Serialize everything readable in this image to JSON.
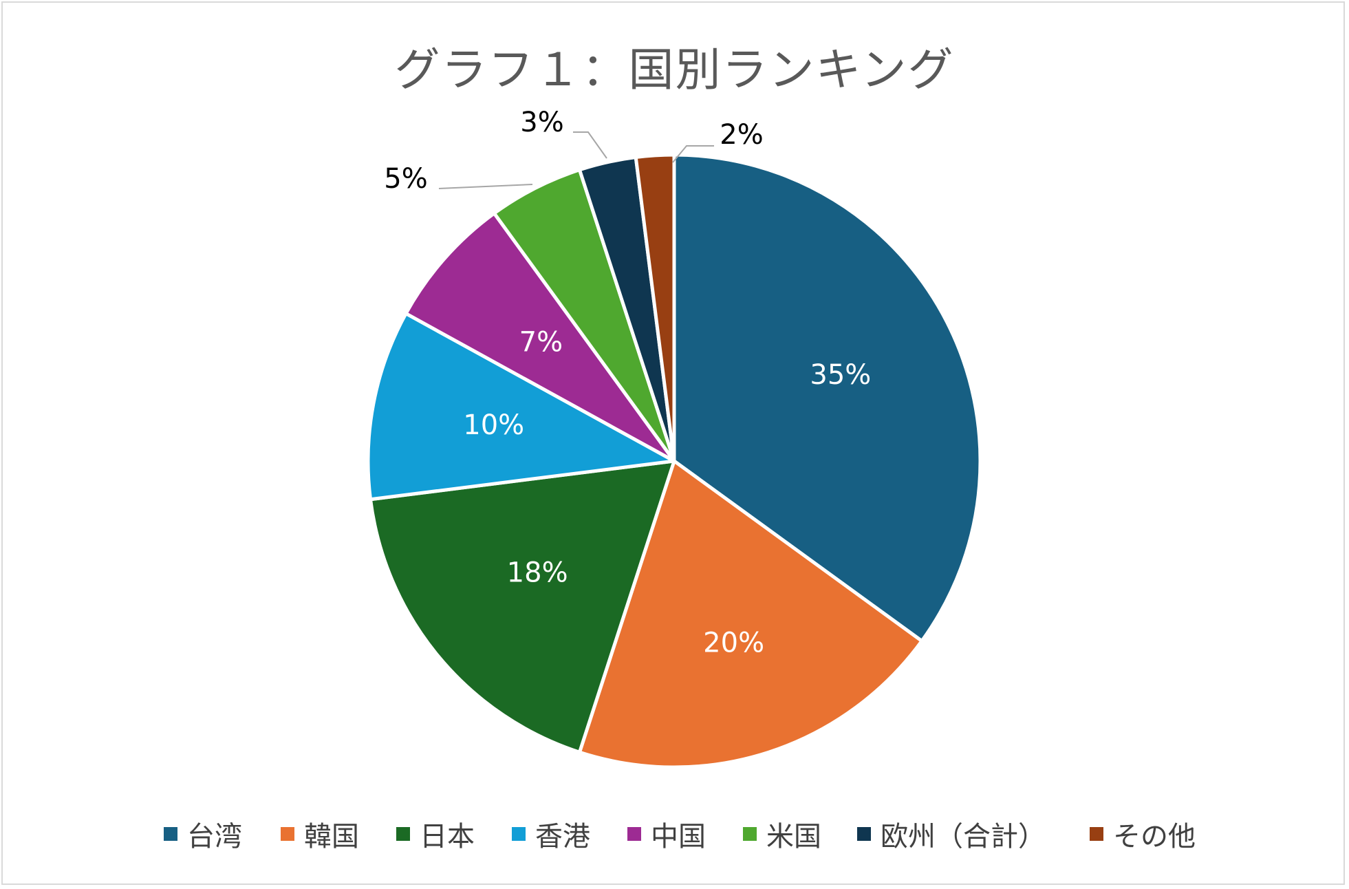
{
  "chart_data": {
    "type": "pie",
    "title": "グラフ１：国別ランキング",
    "categories": [
      "台湾",
      "韓国",
      "日本",
      "香港",
      "中国",
      "米国",
      "欧州（合計）",
      "その他"
    ],
    "values": [
      35,
      20,
      18,
      10,
      7,
      5,
      3,
      2
    ],
    "data_labels": [
      "35%",
      "20%",
      "18%",
      "10%",
      "7%",
      "5%",
      "3%",
      "2%"
    ],
    "colors": [
      "#175f83",
      "#e97231",
      "#1b6a24",
      "#129ed6",
      "#9d2b93",
      "#4fa82f",
      "#0f3650",
      "#983f12"
    ],
    "legend_position": "bottom"
  }
}
